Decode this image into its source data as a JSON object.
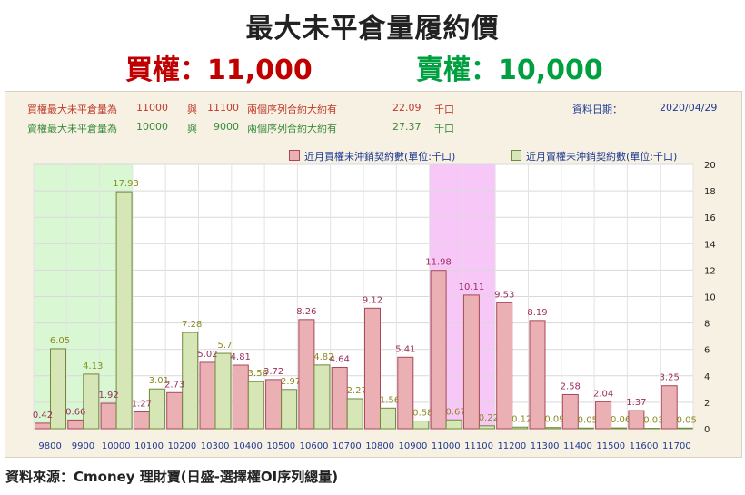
{
  "header": {
    "title": "最大未平倉量履約價",
    "call_line": "買權：11,000",
    "put_line": "賣權：10,000"
  },
  "info": {
    "call": {
      "label": "買權最大未平倉量為",
      "strike1": "11000",
      "conj": "與",
      "strike2": "11100",
      "desc": "兩個序列合約大約有",
      "value": "22.09",
      "unit": "千口"
    },
    "put": {
      "label": "賣權最大未平倉量為",
      "strike1": "10000",
      "conj": "與",
      "strike2": "9000",
      "desc": "兩個序列合約大約有",
      "value": "27.37",
      "unit": "千口"
    },
    "date_label": "資料日期：",
    "date_value": "2020/04/29"
  },
  "colors": {
    "call_bar": "#eab0b3",
    "call_stroke": "#a8485a",
    "put_bar": "#d6e6b7",
    "put_stroke": "#6e8a3a",
    "call_label": "#9b2d5b",
    "put_label": "#8a8a1e",
    "green_band": "#d9f7d2",
    "pink_band": "#f7c8f7"
  },
  "chart_data": {
    "type": "bar",
    "categories": [
      "9800",
      "9900",
      "10000",
      "10100",
      "10200",
      "10300",
      "10400",
      "10500",
      "10600",
      "10700",
      "10800",
      "10900",
      "11000",
      "11100",
      "11200",
      "11300",
      "11400",
      "11500",
      "11600",
      "11700"
    ],
    "series": [
      {
        "name": "近月買權未沖銷契約數(單位:千口)",
        "values": [
          0.42,
          0.66,
          1.92,
          1.27,
          2.73,
          5.02,
          4.81,
          3.72,
          8.26,
          4.64,
          9.12,
          5.41,
          11.98,
          10.11,
          9.53,
          8.19,
          2.58,
          2.04,
          1.37,
          3.25
        ]
      },
      {
        "name": "近月賣權未沖銷契約數(單位:千口)",
        "values": [
          6.05,
          4.13,
          17.93,
          3.01,
          7.28,
          5.7,
          3.56,
          2.97,
          4.82,
          2.27,
          1.56,
          0.58,
          0.67,
          0.22,
          0.12,
          0.09,
          0.05,
          0.06,
          0.03,
          0.05
        ]
      }
    ],
    "ylim": [
      0,
      20
    ],
    "yticks": [
      0,
      2,
      4,
      6,
      8,
      10,
      12,
      14,
      16,
      18,
      20
    ],
    "y_axis_side": "right",
    "highlight_put_range": [
      "9800",
      "10000"
    ],
    "highlight_call_range": [
      "11000",
      "11100"
    ],
    "legend_position": "top"
  },
  "footer": {
    "source": "資料來源：Cmoney 理財寶(日盛-選擇權OI序列總量)"
  }
}
